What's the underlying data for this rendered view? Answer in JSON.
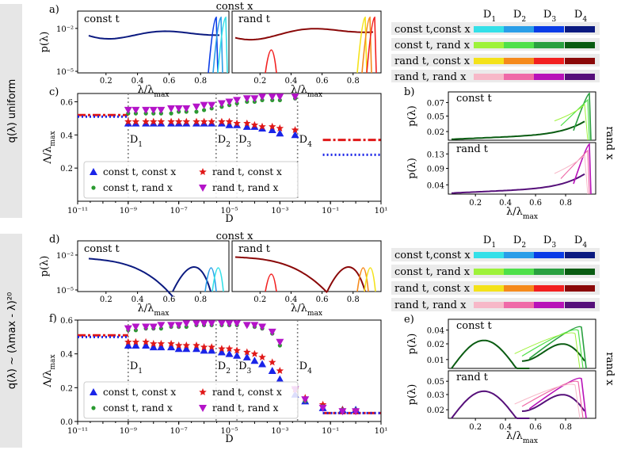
{
  "rows": [
    {
      "side_label": "q(λ) uniform",
      "dist_panel": {
        "label": "a)",
        "title_top": "const x",
        "left_title": "const t",
        "right_title": "rand t",
        "ylabel": "p(λ)",
        "yticks": [
          "10⁻²",
          "10⁻⁵"
        ],
        "xticks": [
          "0.2",
          "0.4",
          "0.6",
          "0.8"
        ],
        "xlabel": "λ/λmax"
      },
      "legend_table": {
        "header": [
          "D1",
          "D2",
          "D3",
          "D4"
        ],
        "rows": [
          {
            "label": "const t,const x",
            "colors": [
              "#34e0e8",
              "#2a9ee8",
              "#0a3ce6",
              "#0b1a80"
            ]
          },
          {
            "label": "const t, rand x",
            "colors": [
              "#9ef23a",
              "#4fe04a",
              "#2aa040",
              "#0a5c12"
            ]
          },
          {
            "label": "rand t, const x",
            "colors": [
              "#f4e21a",
              "#f58a1c",
              "#f22020",
              "#8a0808"
            ]
          },
          {
            "label": "rand t, rand x",
            "colors": [
              "#f7b8c8",
              "#ef6aa8",
              "#b812b8",
              "#56107a"
            ]
          }
        ]
      },
      "scatter_panel": {
        "label": "c)",
        "ylabel": "Λ/λmax",
        "xlabel": "D",
        "yticks": [
          "0.2",
          "0.4",
          "0.6"
        ],
        "xticks": [
          "10⁻¹¹",
          "10⁻⁹",
          "10⁻⁷",
          "10⁻⁵",
          "10⁻³",
          "10⁻¹",
          "10¹"
        ],
        "vlines": [
          "D1",
          "D2",
          "D3",
          "D4"
        ],
        "legend": [
          "const t, const x",
          "rand t, const x",
          "const t, rand x",
          "rand t, rand x"
        ]
      },
      "right_panel": {
        "label": "b)",
        "top_title": "const t",
        "bottom_title": "rand t",
        "side_title": "rand x",
        "ylabel": "p(λ)",
        "top_yticks": [
          "0.07",
          "0.05",
          "0.02"
        ],
        "bottom_yticks": [
          "0.13",
          "0.09",
          "0.04"
        ],
        "xticks": [
          "0.2",
          "0.4",
          "0.6",
          "0.8"
        ],
        "xlabel": "λ/λmax"
      }
    },
    {
      "side_label": "q(λ) ~ (λmax - λ)²⁰",
      "dist_panel": {
        "label": "d)",
        "title_top": "const x",
        "left_title": "const t",
        "right_title": "rand t",
        "ylabel": "p(λ)",
        "yticks": [
          "10⁻²",
          "10⁻⁵"
        ],
        "xticks": [
          "0.2",
          "0.4",
          "0.6",
          "0.8"
        ],
        "xlabel": "λ/λmax"
      },
      "legend_table": {
        "header": [
          "D1",
          "D2",
          "D3",
          "D4"
        ],
        "rows": [
          {
            "label": "const t,const x",
            "colors": [
              "#34e0e8",
              "#2a9ee8",
              "#0a3ce6",
              "#0b1a80"
            ]
          },
          {
            "label": "const t, rand x",
            "colors": [
              "#9ef23a",
              "#4fe04a",
              "#2aa040",
              "#0a5c12"
            ]
          },
          {
            "label": "rand t, const x",
            "colors": [
              "#f4e21a",
              "#f58a1c",
              "#f22020",
              "#8a0808"
            ]
          },
          {
            "label": "rand t, rand x",
            "colors": [
              "#f7b8c8",
              "#ef6aa8",
              "#b812b8",
              "#56107a"
            ]
          }
        ]
      },
      "scatter_panel": {
        "label": "f)",
        "ylabel": "Λ/λmax",
        "xlabel": "D",
        "yticks": [
          "0.0",
          "0.2",
          "0.4",
          "0.6"
        ],
        "xticks": [
          "10⁻¹¹",
          "10⁻⁹",
          "10⁻⁷",
          "10⁻⁵",
          "10⁻³",
          "10⁻¹",
          "10¹"
        ],
        "vlines": [
          "D1",
          "D2",
          "D3",
          "D4"
        ],
        "legend": [
          "const t, const x",
          "rand t, const x",
          "const t, rand x",
          "rand t, rand x"
        ]
      },
      "right_panel": {
        "label": "e)",
        "top_title": "const t",
        "bottom_title": "rand t",
        "side_title": "rand x",
        "ylabel": "p(λ)",
        "top_yticks": [
          "0.04",
          "0.02",
          "0.01"
        ],
        "bottom_yticks": [
          "0.05",
          "0.03",
          "0.02"
        ],
        "xticks": [
          "0.2",
          "0.4",
          "0.6",
          "0.8"
        ],
        "xlabel": "λ/λmax"
      }
    }
  ],
  "chart_data": [
    {
      "type": "scatter",
      "panel": "c",
      "xscale": "log",
      "xlim": [
        1e-11,
        10
      ],
      "ylim": [
        0.0,
        0.65
      ],
      "xlabel": "D",
      "ylabel": "Λ/λmax",
      "vlines": [
        1e-09,
        3e-06,
        2e-05,
        0.005
      ],
      "series": [
        {
          "name": "const t, const x",
          "marker": "triangle-up",
          "color": "#1a24e8",
          "x": [
            1e-09,
            2e-09,
            5e-09,
            1e-08,
            2e-08,
            5e-08,
            1e-07,
            2e-07,
            5e-07,
            1e-06,
            2e-06,
            5e-06,
            1e-05,
            2e-05,
            5e-05,
            0.0001,
            0.0002,
            0.0005,
            0.001,
            0.004
          ],
          "y": [
            0.47,
            0.47,
            0.47,
            0.47,
            0.47,
            0.47,
            0.47,
            0.47,
            0.47,
            0.47,
            0.47,
            0.47,
            0.46,
            0.46,
            0.45,
            0.45,
            0.44,
            0.43,
            0.41,
            0.4
          ]
        },
        {
          "name": "rand t, const x",
          "marker": "star",
          "color": "#e01818",
          "x": [
            1e-09,
            2e-09,
            5e-09,
            1e-08,
            2e-08,
            5e-08,
            1e-07,
            2e-07,
            5e-07,
            1e-06,
            2e-06,
            5e-06,
            1e-05,
            2e-05,
            5e-05,
            0.0001,
            0.0002,
            0.0005,
            0.001,
            0.004
          ],
          "y": [
            0.48,
            0.48,
            0.48,
            0.48,
            0.48,
            0.48,
            0.48,
            0.48,
            0.48,
            0.48,
            0.48,
            0.48,
            0.48,
            0.47,
            0.47,
            0.46,
            0.45,
            0.45,
            0.44,
            0.43
          ]
        },
        {
          "name": "const t, rand x",
          "marker": "circle",
          "color": "#2a9a30",
          "x": [
            1e-09,
            2e-09,
            5e-09,
            1e-08,
            2e-08,
            5e-08,
            1e-07,
            2e-07,
            5e-07,
            1e-06,
            2e-06,
            5e-06,
            1e-05,
            2e-05,
            5e-05,
            0.0001,
            0.0002,
            0.0005,
            0.001,
            0.004
          ],
          "y": [
            0.53,
            0.53,
            0.53,
            0.53,
            0.53,
            0.53,
            0.54,
            0.54,
            0.54,
            0.55,
            0.56,
            0.57,
            0.58,
            0.59,
            0.6,
            0.6,
            0.61,
            0.61,
            0.61,
            0.62
          ]
        },
        {
          "name": "rand t, rand x",
          "marker": "triangle-down",
          "color": "#b414c8",
          "x": [
            1e-09,
            2e-09,
            5e-09,
            1e-08,
            2e-08,
            5e-08,
            1e-07,
            2e-07,
            5e-07,
            1e-06,
            2e-06,
            5e-06,
            1e-05,
            2e-05,
            5e-05,
            0.0001,
            0.0002,
            0.0005,
            0.001,
            0.004
          ],
          "y": [
            0.55,
            0.55,
            0.55,
            0.55,
            0.55,
            0.56,
            0.56,
            0.56,
            0.57,
            0.58,
            0.58,
            0.59,
            0.6,
            0.61,
            0.62,
            0.62,
            0.63,
            0.63,
            0.63,
            0.63
          ]
        }
      ],
      "ref_lines": [
        {
          "name": "left red",
          "style": "dash-dot",
          "color": "#e01818",
          "x": [
            1e-11,
            1e-09
          ],
          "y": 0.52
        },
        {
          "name": "left blue",
          "style": "dotted",
          "color": "#1a24e8",
          "x": [
            1e-11,
            1e-09
          ],
          "y": 0.51
        },
        {
          "name": "right red",
          "style": "dash-dot",
          "color": "#e01818",
          "x": [
            0.05,
            10
          ],
          "y": 0.37
        },
        {
          "name": "right blue",
          "style": "dotted",
          "color": "#1a24e8",
          "x": [
            0.05,
            10
          ],
          "y": 0.28
        }
      ]
    },
    {
      "type": "scatter",
      "panel": "f",
      "xscale": "log",
      "xlim": [
        1e-11,
        10
      ],
      "ylim": [
        0.0,
        0.6
      ],
      "xlabel": "D",
      "ylabel": "Λ/λmax",
      "vlines": [
        1e-09,
        3e-06,
        2e-05,
        0.005
      ],
      "series": [
        {
          "name": "const t, const x",
          "marker": "triangle-up",
          "color": "#1a24e8",
          "x": [
            1e-09,
            2e-09,
            5e-09,
            1e-08,
            2e-08,
            5e-08,
            1e-07,
            2e-07,
            5e-07,
            1e-06,
            2e-06,
            5e-06,
            1e-05,
            2e-05,
            5e-05,
            0.0001,
            0.0002,
            0.0005,
            0.001,
            0.004,
            0.01,
            0.05,
            0.3,
            1
          ],
          "y": [
            0.45,
            0.45,
            0.45,
            0.44,
            0.44,
            0.44,
            0.43,
            0.43,
            0.43,
            0.42,
            0.42,
            0.41,
            0.4,
            0.39,
            0.38,
            0.36,
            0.34,
            0.3,
            0.25,
            0.16,
            0.12,
            0.08,
            0.07,
            0.07
          ]
        },
        {
          "name": "rand t, const x",
          "marker": "star",
          "color": "#e01818",
          "x": [
            1e-09,
            2e-09,
            5e-09,
            1e-08,
            2e-08,
            5e-08,
            1e-07,
            2e-07,
            5e-07,
            1e-06,
            2e-06,
            5e-06,
            1e-05,
            2e-05,
            5e-05,
            0.0001,
            0.0002,
            0.0005,
            0.001,
            0.004,
            0.01,
            0.05,
            0.3,
            1
          ],
          "y": [
            0.47,
            0.47,
            0.47,
            0.46,
            0.46,
            0.46,
            0.45,
            0.45,
            0.45,
            0.44,
            0.44,
            0.43,
            0.43,
            0.42,
            0.41,
            0.4,
            0.38,
            0.35,
            0.3,
            0.19,
            0.14,
            0.1,
            0.07,
            0.06
          ]
        },
        {
          "name": "const t, rand x",
          "marker": "circle",
          "color": "#2a9a30",
          "x": [
            1e-09,
            2e-09,
            5e-09,
            1e-08,
            2e-08,
            5e-08,
            1e-07,
            2e-07,
            5e-07,
            1e-06,
            2e-06,
            5e-06,
            1e-05,
            2e-05,
            5e-05,
            0.0001,
            0.0002,
            0.0005,
            0.001,
            0.004,
            0.01,
            0.05,
            0.3,
            1
          ],
          "y": [
            0.54,
            0.54,
            0.55,
            0.55,
            0.55,
            0.56,
            0.56,
            0.56,
            0.57,
            0.57,
            0.57,
            0.57,
            0.57,
            0.57,
            0.57,
            0.56,
            0.55,
            0.52,
            0.45,
            0.19,
            0.12,
            0.09,
            0.07,
            0.07
          ]
        },
        {
          "name": "rand t, rand x",
          "marker": "triangle-down",
          "color": "#b414c8",
          "x": [
            1e-09,
            2e-09,
            5e-09,
            1e-08,
            2e-08,
            5e-08,
            1e-07,
            2e-07,
            5e-07,
            1e-06,
            2e-06,
            5e-06,
            1e-05,
            2e-05,
            5e-05,
            0.0001,
            0.0002,
            0.0005,
            0.001,
            0.004,
            0.01,
            0.05,
            0.3,
            1
          ],
          "y": [
            0.55,
            0.56,
            0.56,
            0.56,
            0.57,
            0.57,
            0.57,
            0.58,
            0.58,
            0.58,
            0.58,
            0.58,
            0.58,
            0.58,
            0.57,
            0.57,
            0.56,
            0.53,
            0.47,
            0.19,
            0.13,
            0.08,
            0.06,
            0.06
          ]
        }
      ],
      "ref_lines": [
        {
          "name": "left red",
          "style": "dash-dot",
          "color": "#e01818",
          "x": [
            1e-11,
            1e-09
          ],
          "y": 0.51
        },
        {
          "name": "left blue",
          "style": "dotted",
          "color": "#1a24e8",
          "x": [
            1e-11,
            1e-09
          ],
          "y": 0.5
        },
        {
          "name": "right red",
          "style": "dash-dot",
          "color": "#e01818",
          "x": [
            0.05,
            10
          ],
          "y": 0.05
        },
        {
          "name": "right blue",
          "style": "dotted",
          "color": "#1a24e8",
          "x": [
            0.05,
            10
          ],
          "y": 0.05
        }
      ]
    }
  ]
}
